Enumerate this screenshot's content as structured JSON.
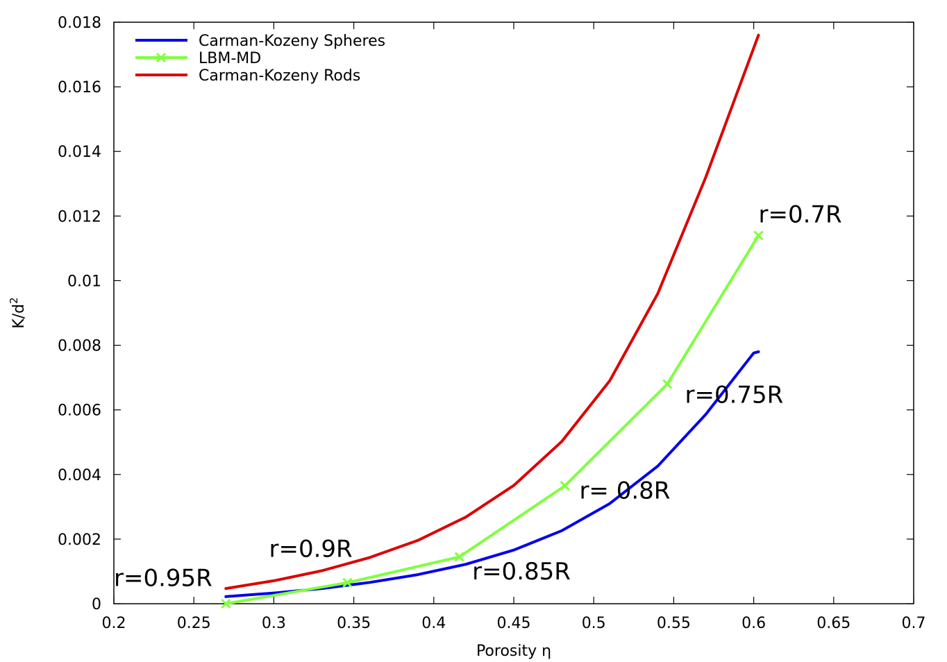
{
  "chart_data": {
    "type": "line",
    "title": "",
    "xlabel": "Porosity η",
    "ylabel_base": "K/d",
    "ylabel_sup": "2",
    "xlim": [
      0.2,
      0.7
    ],
    "ylim": [
      0,
      0.018
    ],
    "x_ticks": [
      0.2,
      0.25,
      0.3,
      0.35,
      0.4,
      0.45,
      0.5,
      0.55,
      0.6,
      0.65,
      0.7
    ],
    "x_tick_labels": [
      "0.2",
      "0.25",
      "0.3",
      "0.35",
      "0.4",
      "0.45",
      "0.5",
      "0.55",
      "0.6",
      "0.65",
      "0.7"
    ],
    "y_ticks": [
      0,
      0.002,
      0.004,
      0.006,
      0.008,
      0.01,
      0.012,
      0.014,
      0.016,
      0.018
    ],
    "y_tick_labels": [
      "0",
      "0.002",
      "0.004",
      "0.006",
      "0.008",
      "0.01",
      "0.012",
      "0.014",
      "0.016",
      "0.018"
    ],
    "grid": false,
    "legend_position": "top-left",
    "series": [
      {
        "name": "Carman-Kozeny Spheres",
        "color": "#0000ee",
        "marker": "none",
        "x": [
          0.27,
          0.3,
          0.33,
          0.36,
          0.39,
          0.42,
          0.45,
          0.48,
          0.51,
          0.54,
          0.57,
          0.6,
          0.603
        ],
        "y": [
          0.00022,
          0.00033,
          0.00047,
          0.00066,
          0.0009,
          0.00122,
          0.00166,
          0.00226,
          0.0031,
          0.00426,
          0.00586,
          0.00776,
          0.0078
        ]
      },
      {
        "name": "LBM-MD",
        "color": "#80ff40",
        "marker": "x",
        "x": [
          0.27,
          0.346,
          0.416,
          0.482,
          0.546,
          0.603
        ],
        "y": [
          0.0,
          0.00065,
          0.00145,
          0.00365,
          0.0068,
          0.0114
        ]
      },
      {
        "name": "Carman-Kozeny Rods",
        "color": "#dd0000",
        "marker": "none",
        "x": [
          0.27,
          0.3,
          0.33,
          0.36,
          0.39,
          0.42,
          0.45,
          0.48,
          0.51,
          0.54,
          0.57,
          0.6,
          0.603
        ],
        "y": [
          0.00047,
          0.00071,
          0.00102,
          0.00143,
          0.00196,
          0.00268,
          0.00366,
          0.00502,
          0.0069,
          0.0096,
          0.0132,
          0.0172,
          0.0176
        ]
      }
    ],
    "annotations": [
      {
        "text": "r=0.95R",
        "x": 0.2,
        "y": 0.00055
      },
      {
        "text": "r=0.9R",
        "x": 0.297,
        "y": 0.00145
      },
      {
        "text": "r=0.85R",
        "x": 0.424,
        "y": 0.00075
      },
      {
        "text": "r= 0.8R",
        "x": 0.491,
        "y": 0.00325
      },
      {
        "text": "r=0.75R",
        "x": 0.557,
        "y": 0.00622
      },
      {
        "text": "r=0.7R",
        "x": 0.603,
        "y": 0.0118
      }
    ]
  }
}
